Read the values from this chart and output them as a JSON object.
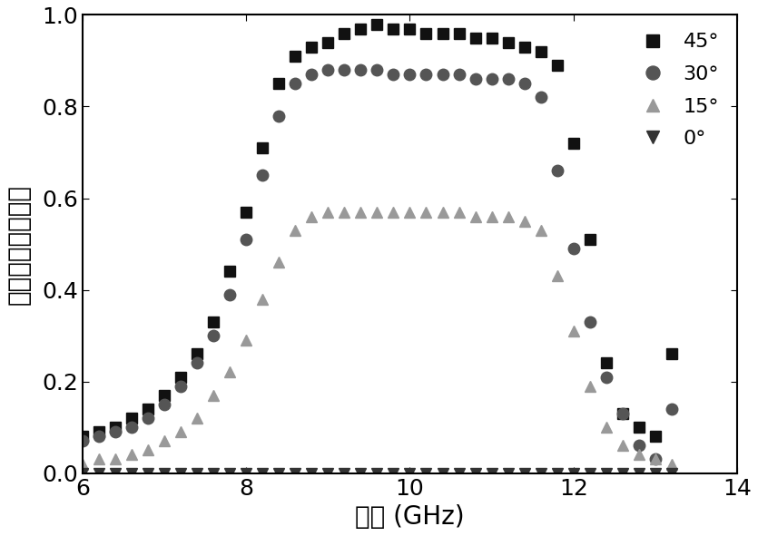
{
  "title": "",
  "xlabel": "频率 (GHz)",
  "ylabel": "交叉极化透射系数",
  "xlim": [
    6,
    14
  ],
  "ylim": [
    0,
    1.0
  ],
  "xticks": [
    6,
    8,
    10,
    12,
    14
  ],
  "yticks": [
    0.0,
    0.2,
    0.4,
    0.6,
    0.8,
    1.0
  ],
  "series": [
    {
      "label": "45°",
      "color": "#111111",
      "marker": "s",
      "markersize": 8,
      "x": [
        6.0,
        6.2,
        6.4,
        6.6,
        6.8,
        7.0,
        7.2,
        7.4,
        7.6,
        7.8,
        8.0,
        8.2,
        8.4,
        8.6,
        8.8,
        9.0,
        9.2,
        9.4,
        9.6,
        9.8,
        10.0,
        10.2,
        10.4,
        10.6,
        10.8,
        11.0,
        11.2,
        11.4,
        11.6,
        11.8,
        12.0,
        12.2,
        12.4,
        12.6,
        12.8,
        13.0,
        13.2
      ],
      "y": [
        0.08,
        0.09,
        0.1,
        0.12,
        0.14,
        0.17,
        0.21,
        0.26,
        0.33,
        0.44,
        0.57,
        0.71,
        0.85,
        0.91,
        0.93,
        0.94,
        0.96,
        0.97,
        0.98,
        0.97,
        0.97,
        0.96,
        0.96,
        0.96,
        0.95,
        0.95,
        0.94,
        0.93,
        0.92,
        0.89,
        0.72,
        0.51,
        0.24,
        0.13,
        0.1,
        0.08,
        0.26
      ]
    },
    {
      "label": "30°",
      "color": "#555555",
      "marker": "o",
      "markersize": 9,
      "x": [
        6.0,
        6.2,
        6.4,
        6.6,
        6.8,
        7.0,
        7.2,
        7.4,
        7.6,
        7.8,
        8.0,
        8.2,
        8.4,
        8.6,
        8.8,
        9.0,
        9.2,
        9.4,
        9.6,
        9.8,
        10.0,
        10.2,
        10.4,
        10.6,
        10.8,
        11.0,
        11.2,
        11.4,
        11.6,
        11.8,
        12.0,
        12.2,
        12.4,
        12.6,
        12.8,
        13.0,
        13.2
      ],
      "y": [
        0.07,
        0.08,
        0.09,
        0.1,
        0.12,
        0.15,
        0.19,
        0.24,
        0.3,
        0.39,
        0.51,
        0.65,
        0.78,
        0.85,
        0.87,
        0.88,
        0.88,
        0.88,
        0.88,
        0.87,
        0.87,
        0.87,
        0.87,
        0.87,
        0.86,
        0.86,
        0.86,
        0.85,
        0.82,
        0.66,
        0.49,
        0.33,
        0.21,
        0.13,
        0.06,
        0.03,
        0.14
      ]
    },
    {
      "label": "15°",
      "color": "#999999",
      "marker": "^",
      "markersize": 8,
      "x": [
        6.0,
        6.2,
        6.4,
        6.6,
        6.8,
        7.0,
        7.2,
        7.4,
        7.6,
        7.8,
        8.0,
        8.2,
        8.4,
        8.6,
        8.8,
        9.0,
        9.2,
        9.4,
        9.6,
        9.8,
        10.0,
        10.2,
        10.4,
        10.6,
        10.8,
        11.0,
        11.2,
        11.4,
        11.6,
        11.8,
        12.0,
        12.2,
        12.4,
        12.6,
        12.8,
        13.0,
        13.2
      ],
      "y": [
        0.02,
        0.03,
        0.03,
        0.04,
        0.05,
        0.07,
        0.09,
        0.12,
        0.17,
        0.22,
        0.29,
        0.38,
        0.46,
        0.53,
        0.56,
        0.57,
        0.57,
        0.57,
        0.57,
        0.57,
        0.57,
        0.57,
        0.57,
        0.57,
        0.56,
        0.56,
        0.56,
        0.55,
        0.53,
        0.43,
        0.31,
        0.19,
        0.1,
        0.06,
        0.04,
        0.03,
        0.02
      ]
    },
    {
      "label": "0°",
      "color": "#333333",
      "marker": "v",
      "markersize": 8,
      "x": [
        6.0,
        6.2,
        6.4,
        6.6,
        6.8,
        7.0,
        7.2,
        7.4,
        7.6,
        7.8,
        8.0,
        8.2,
        8.4,
        8.6,
        8.8,
        9.0,
        9.2,
        9.4,
        9.6,
        9.8,
        10.0,
        10.2,
        10.4,
        10.6,
        10.8,
        11.0,
        11.2,
        11.4,
        11.6,
        11.8,
        12.0,
        12.2,
        12.4,
        12.6,
        12.8,
        13.0,
        13.2
      ],
      "y": [
        0.0,
        0.0,
        0.0,
        0.0,
        0.0,
        0.0,
        0.0,
        0.0,
        0.0,
        0.0,
        0.0,
        0.0,
        0.0,
        0.0,
        0.0,
        0.0,
        0.0,
        0.0,
        0.0,
        0.0,
        0.0,
        0.0,
        0.0,
        0.0,
        0.0,
        0.0,
        0.0,
        0.0,
        0.0,
        0.0,
        0.0,
        0.0,
        0.0,
        0.0,
        0.0,
        0.0,
        0.0
      ]
    }
  ],
  "legend_loc": "upper right",
  "background_color": "#ffffff",
  "figure_size": [
    8.35,
    5.91
  ],
  "tick_fontsize": 18,
  "label_fontsize": 20
}
